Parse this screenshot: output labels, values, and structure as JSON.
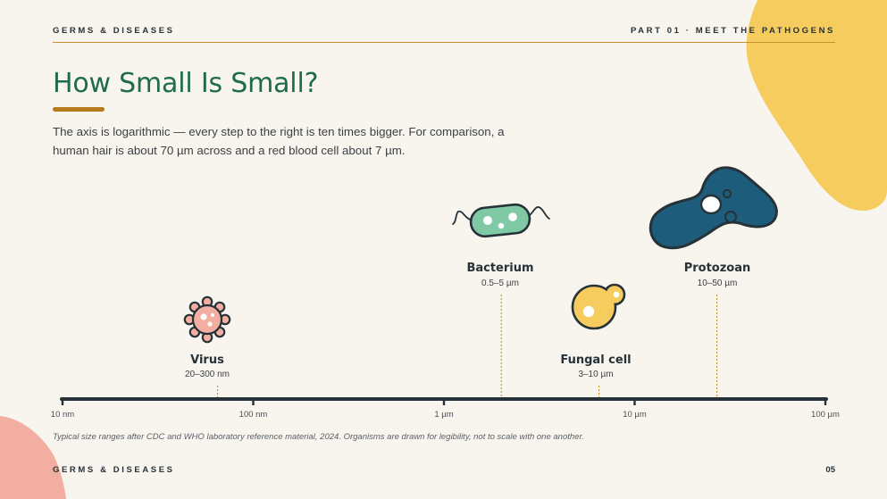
{
  "header": {
    "left": "GERMS & DISEASES",
    "right": "PART 01 · MEET THE PATHOGENS"
  },
  "title": "How Small Is Small?",
  "intro": "The axis is logarithmic — every step to the right is ten times bigger. For comparison, a human hair is about 70 µm across and a red blood cell about 7 µm.",
  "colors": {
    "background": "#f8f5ee",
    "title": "#1f6b4e",
    "accent": "#b57a1c",
    "blob_top_right": "#f6cc5e",
    "blob_bottom_left": "#f2aea0",
    "virus": "#f2aea0",
    "bacterium": "#7fc9a5",
    "fungal_cell": "#f6cc5e",
    "protozoan": "#1d5c7a",
    "axis": "#263238",
    "leader": "#c9912e"
  },
  "axis": {
    "scale": "log",
    "unit_base": "meters",
    "min": 1e-08,
    "max": 0.0001,
    "ticks": [
      {
        "value": 1e-08,
        "label": "10 nm"
      },
      {
        "value": 1e-07,
        "label": "100 nm"
      },
      {
        "value": 1e-06,
        "label": "1 µm"
      },
      {
        "value": 1e-05,
        "label": "10 µm"
      },
      {
        "value": 0.0001,
        "label": "100 µm"
      }
    ]
  },
  "organisms": [
    {
      "id": "virus",
      "name": "Virus",
      "range": "20–300 nm",
      "marker_value": 6.5e-08,
      "icon": "virus-icon"
    },
    {
      "id": "bacterium",
      "name": "Bacterium",
      "range": "0.5–5 µm",
      "marker_value": 2e-06,
      "icon": "bacterium-icon"
    },
    {
      "id": "fungal",
      "name": "Fungal cell",
      "range": "3–10 µm",
      "marker_value": 6.5e-06,
      "icon": "fungal-cell-icon"
    },
    {
      "id": "protozoan",
      "name": "Protozoan",
      "range": "10–50 µm",
      "marker_value": 2.7e-05,
      "icon": "protozoan-icon"
    }
  ],
  "source_note": "Typical size ranges after CDC and WHO laboratory reference material, 2024. Organisms are drawn for legibility, not to scale with one another.",
  "footer": {
    "left": "GERMS & DISEASES",
    "page": "05"
  }
}
